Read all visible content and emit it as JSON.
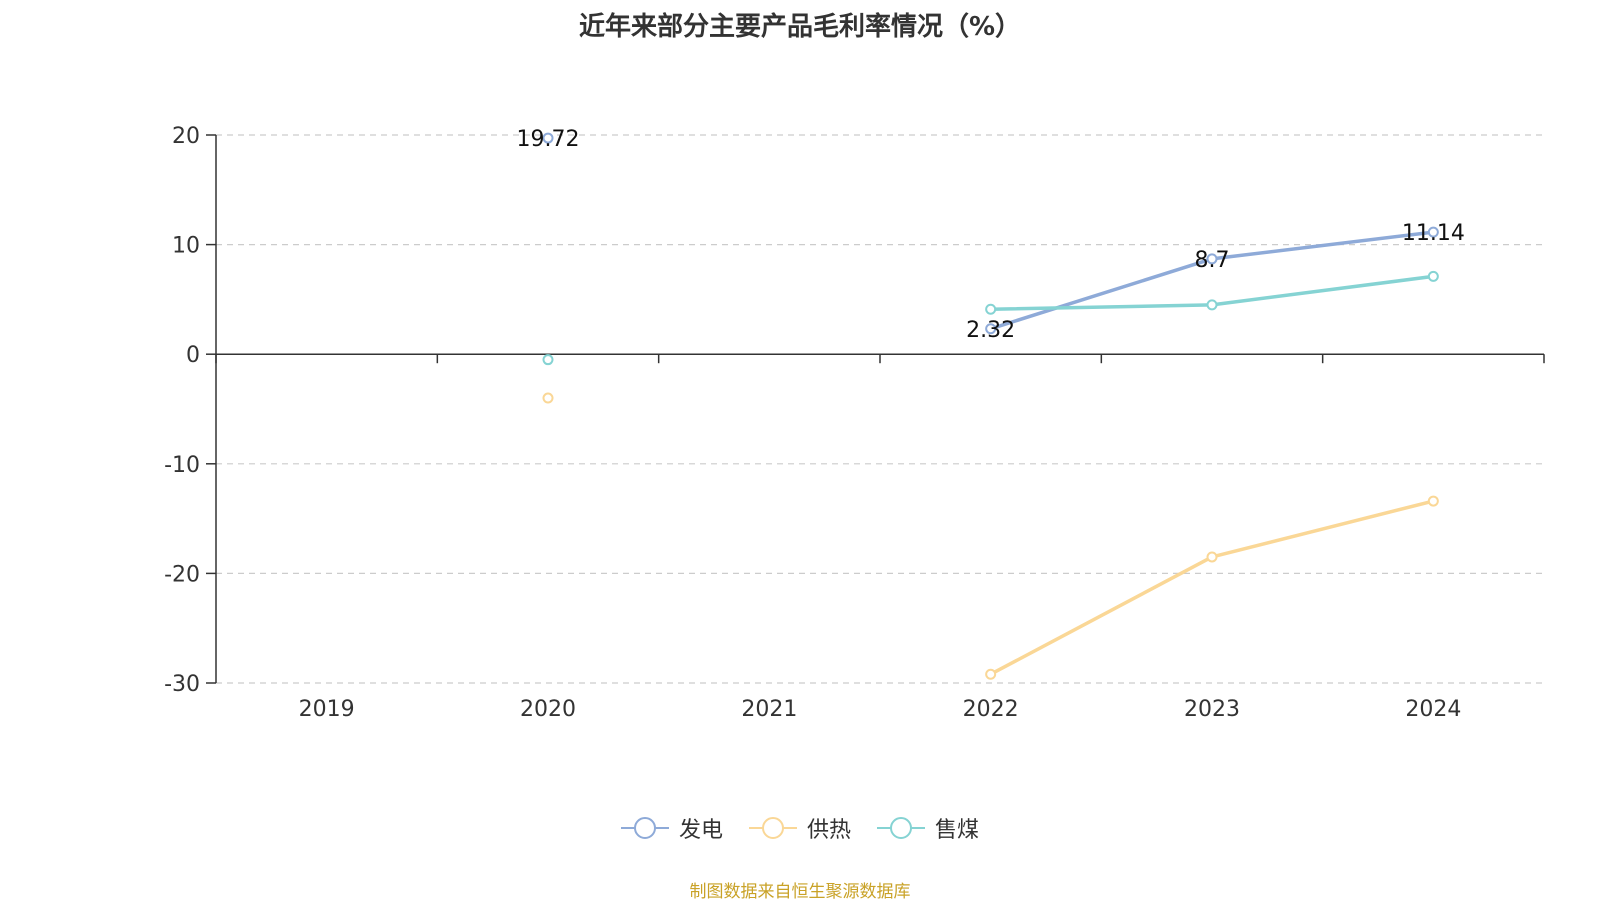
{
  "chart_data": {
    "type": "line",
    "title": "近年来部分主要产品毛利率情况（%）",
    "categories": [
      "2019",
      "2020",
      "2021",
      "2022",
      "2023",
      "2024"
    ],
    "ylim": [
      -30,
      20
    ],
    "yticks": [
      20,
      10,
      0,
      -10,
      -20,
      -30
    ],
    "grid": true,
    "legend_position": "bottom",
    "series": [
      {
        "name": "发电",
        "color": "#8eaad8",
        "values": [
          null,
          19.72,
          null,
          2.32,
          8.7,
          11.14
        ],
        "labels": [
          "",
          "19.72",
          "",
          "2.32",
          "8.7",
          "11.14"
        ]
      },
      {
        "name": "供热",
        "color": "#fad796",
        "values": [
          null,
          -4.0,
          null,
          -29.2,
          -18.5,
          -13.4
        ],
        "labels": [
          "",
          "",
          "",
          "",
          "",
          ""
        ]
      },
      {
        "name": "售煤",
        "color": "#85d3d3",
        "values": [
          null,
          -0.5,
          null,
          4.1,
          4.5,
          7.1
        ],
        "labels": [
          "",
          "",
          "",
          "",
          "",
          ""
        ]
      }
    ]
  },
  "source_text": "制图数据来自恒生聚源数据库"
}
